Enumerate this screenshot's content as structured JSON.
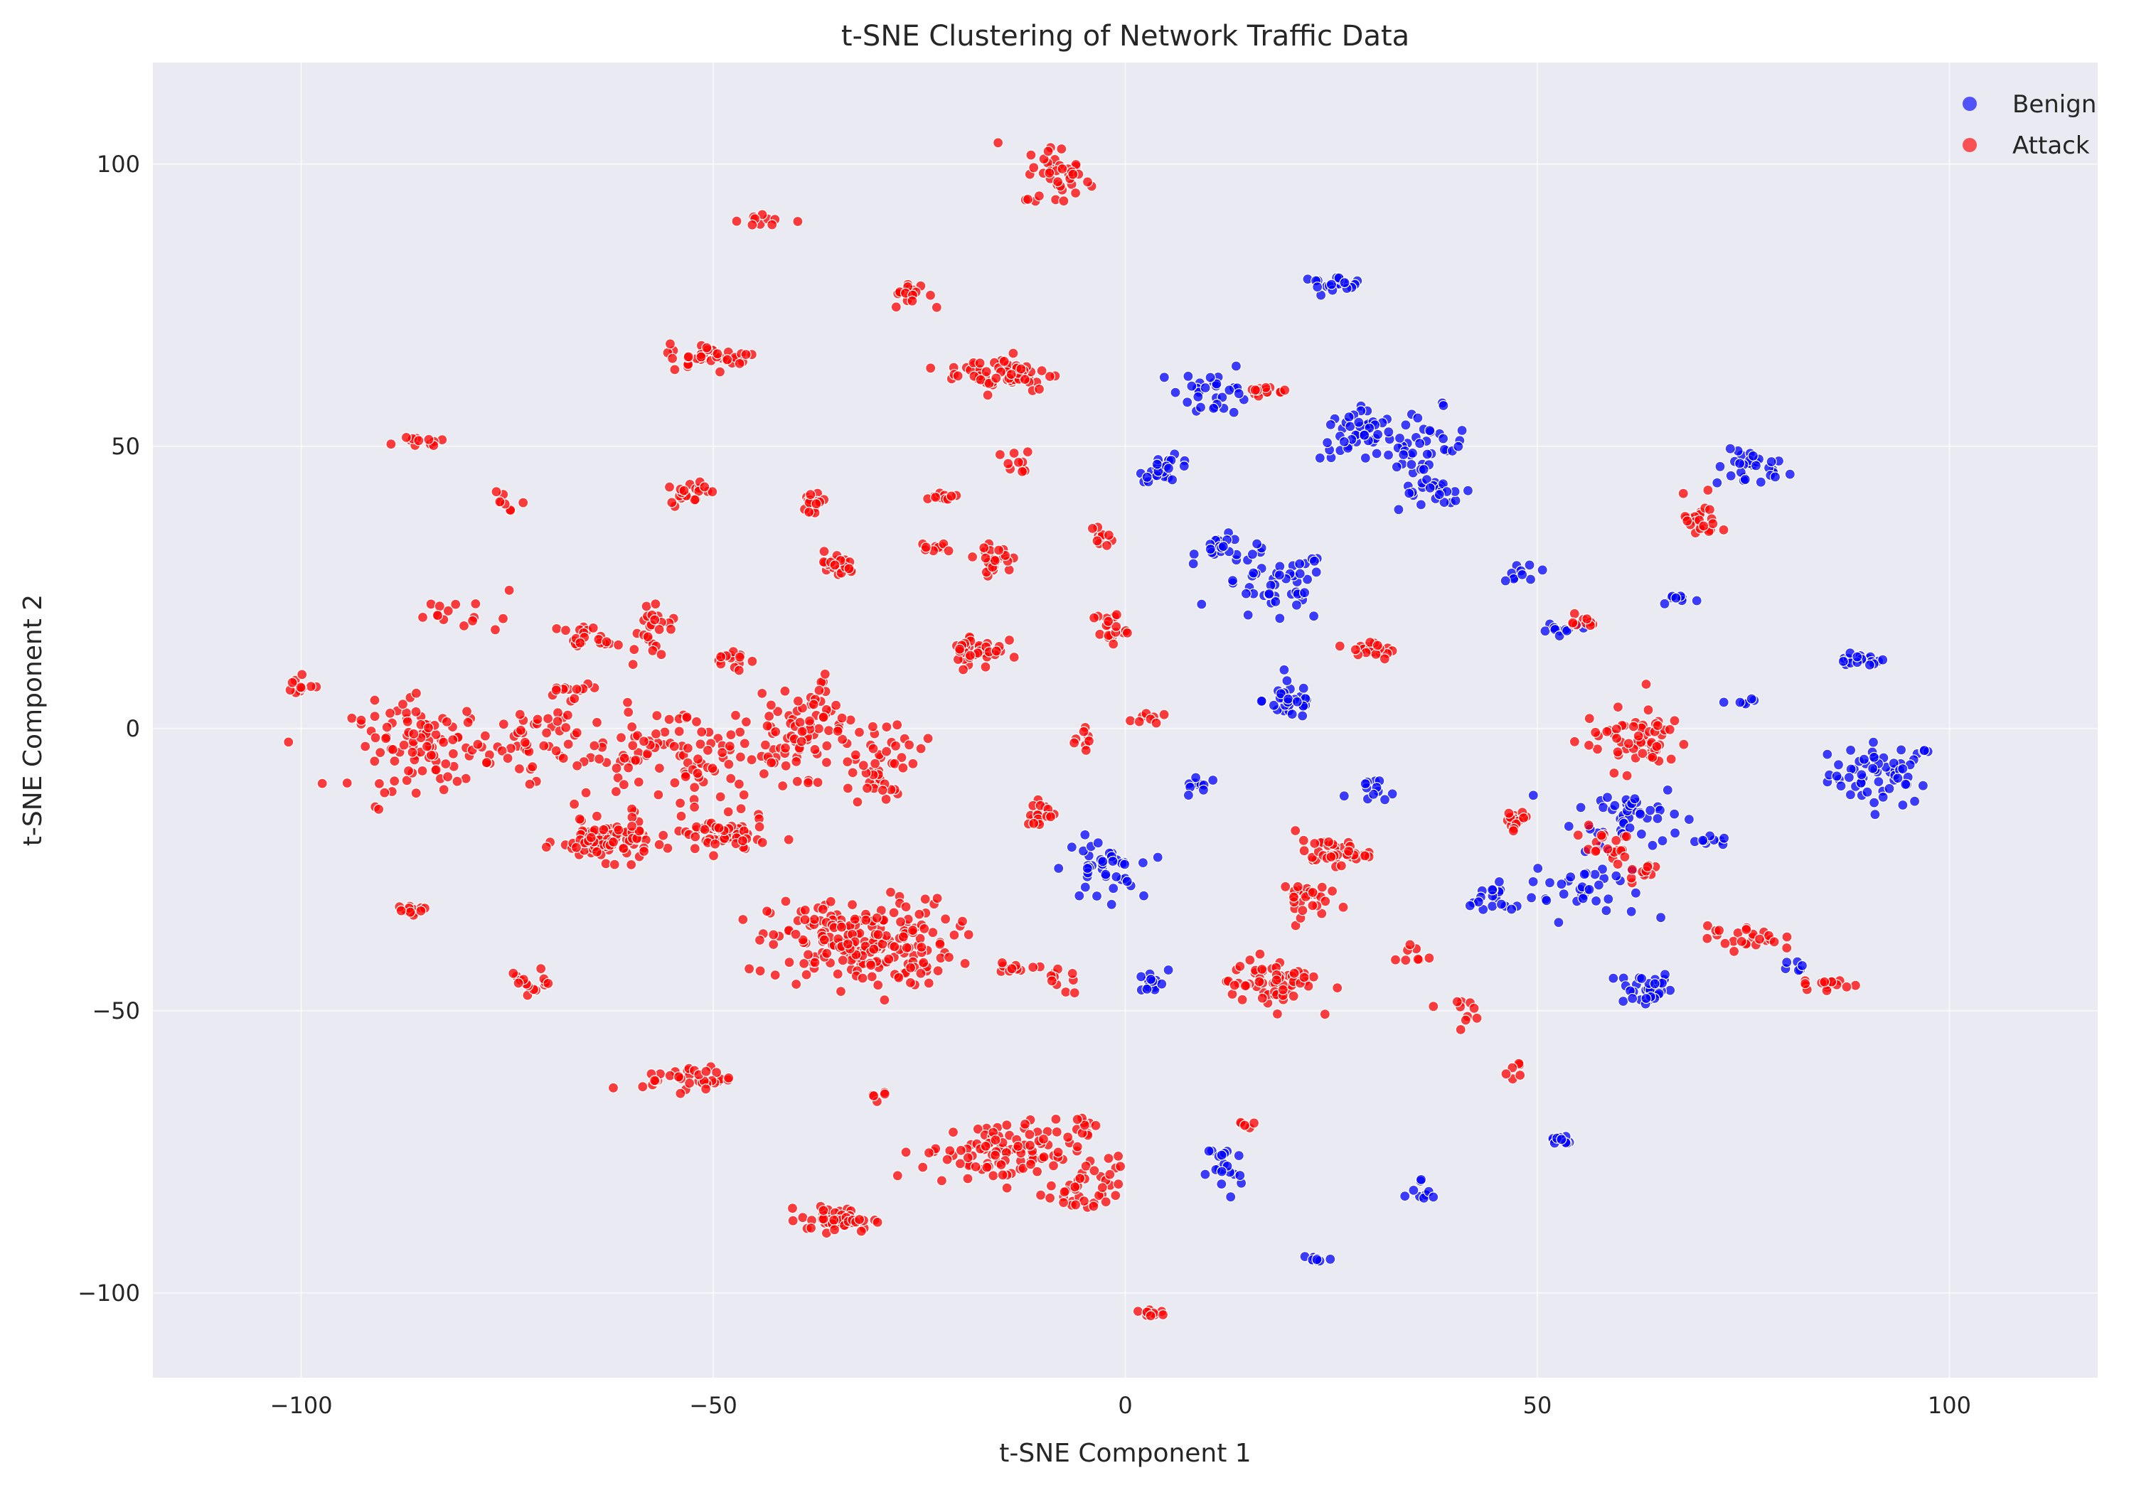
{
  "chart_data": {
    "type": "scatter",
    "title": "t-SNE Clustering of Network Traffic Data",
    "xlabel": "t-SNE Component 1",
    "ylabel": "t-SNE Component 2",
    "xlim": [
      -118,
      118
    ],
    "ylim": [
      -115,
      118
    ],
    "xticks": [
      -100,
      -50,
      0,
      50,
      100
    ],
    "yticks": [
      -100,
      -50,
      0,
      50,
      100
    ],
    "xtick_labels": [
      "−100",
      "−50",
      "0",
      "50",
      "100"
    ],
    "ytick_labels": [
      "−100",
      "−50",
      "0",
      "50",
      "100"
    ],
    "grid": true,
    "background": "#eaeaf2",
    "legend_position": "top-right",
    "series": [
      {
        "name": "Benign",
        "color": "#0000ff",
        "clusters": [
          [
            92,
            -8,
            6,
            5,
            60
          ],
          [
            89,
            12,
            3,
            1,
            18
          ],
          [
            76,
            46,
            4,
            3,
            30
          ],
          [
            63,
            -46,
            3,
            3,
            35
          ],
          [
            61,
            -15,
            6,
            5,
            45
          ],
          [
            56,
            -28,
            6,
            5,
            35
          ],
          [
            45,
            -30,
            4,
            3,
            20
          ],
          [
            36,
            50,
            5,
            6,
            45
          ],
          [
            38,
            42,
            4,
            2,
            20
          ],
          [
            28,
            52,
            4,
            4,
            40
          ],
          [
            20,
            5,
            3,
            3,
            35
          ],
          [
            18,
            25,
            6,
            6,
            50
          ],
          [
            12,
            32,
            3,
            2,
            20
          ],
          [
            11,
            60,
            4,
            4,
            30
          ],
          [
            5,
            46,
            3,
            2,
            25
          ],
          [
            25,
            79,
            4,
            1,
            20
          ],
          [
            -3,
            -25,
            4,
            5,
            40
          ],
          [
            3,
            -45,
            2,
            2,
            15
          ],
          [
            30,
            -12,
            3,
            3,
            12
          ],
          [
            12,
            -78,
            2,
            5,
            20
          ],
          [
            23,
            -94,
            2,
            1,
            10
          ],
          [
            53,
            -73,
            2,
            1,
            10
          ],
          [
            82,
            -42,
            2,
            1,
            6
          ],
          [
            67,
            23,
            2,
            1,
            8
          ],
          [
            53,
            18,
            3,
            1,
            12
          ],
          [
            9,
            -10,
            2,
            2,
            10
          ],
          [
            36,
            -83,
            2,
            3,
            10
          ],
          [
            70,
            -20,
            3,
            1,
            10
          ],
          [
            75,
            5,
            2,
            1,
            6
          ],
          [
            48,
            28,
            2,
            2,
            10
          ]
        ]
      },
      {
        "name": "Attack",
        "color": "#ff0000",
        "clusters": [
          [
            -32,
            -38,
            10,
            7,
            220
          ],
          [
            -55,
            -5,
            14,
            8,
            120
          ],
          [
            -85,
            -3,
            8,
            7,
            100
          ],
          [
            -72,
            -2,
            5,
            6,
            40
          ],
          [
            -63,
            -20,
            5,
            3,
            90
          ],
          [
            -49,
            -19,
            5,
            3,
            60
          ],
          [
            -40,
            -2,
            5,
            6,
            50
          ],
          [
            -30,
            -5,
            5,
            7,
            50
          ],
          [
            -15,
            -75,
            9,
            5,
            110
          ],
          [
            -5,
            -82,
            4,
            4,
            35
          ],
          [
            -35,
            -87,
            4,
            2,
            50
          ],
          [
            -53,
            -62,
            5,
            2,
            35
          ],
          [
            -15,
            63,
            6,
            3,
            60
          ],
          [
            -50,
            66,
            5,
            2,
            40
          ],
          [
            -26,
            77,
            2,
            2,
            20
          ],
          [
            -8,
            98,
            4,
            5,
            40
          ],
          [
            -18,
            14,
            3,
            3,
            40
          ],
          [
            -16,
            30,
            2,
            2,
            30
          ],
          [
            -35,
            29,
            2,
            2,
            25
          ],
          [
            -38,
            40,
            2,
            2,
            20
          ],
          [
            -53,
            42,
            2,
            2,
            20
          ],
          [
            -58,
            18,
            3,
            4,
            25
          ],
          [
            -65,
            16,
            3,
            2,
            20
          ],
          [
            -80,
            20,
            6,
            3,
            15
          ],
          [
            -86,
            51,
            3,
            1,
            12
          ],
          [
            -37,
            4,
            2,
            5,
            20
          ],
          [
            -2,
            18,
            2,
            3,
            20
          ],
          [
            -3,
            34,
            1,
            2,
            10
          ],
          [
            25,
            -22,
            4,
            2,
            40
          ],
          [
            18,
            -45,
            5,
            4,
            60
          ],
          [
            21,
            -30,
            3,
            3,
            30
          ],
          [
            35,
            -40,
            2,
            2,
            8
          ],
          [
            62,
            -2,
            6,
            5,
            60
          ],
          [
            58,
            -20,
            3,
            3,
            20
          ],
          [
            47,
            -17,
            2,
            2,
            15
          ],
          [
            70,
            37,
            2,
            4,
            25
          ],
          [
            75,
            -37,
            4,
            2,
            25
          ],
          [
            85,
            -45,
            3,
            2,
            15
          ],
          [
            3,
            -103,
            2,
            2,
            10
          ],
          [
            -8,
            -45,
            2,
            2,
            10
          ],
          [
            -5,
            -2,
            1,
            2,
            8
          ],
          [
            -86,
            -32,
            2,
            1,
            12
          ],
          [
            -72,
            -45,
            3,
            2,
            15
          ],
          [
            -67,
            7,
            3,
            1,
            12
          ],
          [
            -100,
            8,
            2,
            2,
            10
          ],
          [
            -75,
            40,
            2,
            2,
            8
          ],
          [
            -44,
            90,
            3,
            1,
            10
          ],
          [
            -10,
            -15,
            2,
            2,
            20
          ],
          [
            -13,
            47,
            2,
            2,
            10
          ],
          [
            -22,
            41,
            2,
            1,
            10
          ],
          [
            -23,
            32,
            2,
            1,
            10
          ],
          [
            17,
            60,
            2,
            1,
            15
          ],
          [
            40,
            -50,
            2,
            2,
            10
          ],
          [
            55,
            19,
            2,
            1,
            10
          ],
          [
            63,
            -25,
            2,
            2,
            12
          ],
          [
            2,
            2,
            2,
            1,
            8
          ],
          [
            -48,
            12,
            2,
            2,
            15
          ],
          [
            -30,
            -65,
            1,
            1,
            5
          ],
          [
            47,
            -60,
            1,
            2,
            6
          ],
          [
            30,
            14,
            3,
            2,
            20
          ],
          [
            14,
            -70,
            2,
            1,
            6
          ],
          [
            -5,
            -70,
            1,
            1,
            6
          ],
          [
            -13,
            -42,
            2,
            2,
            10
          ]
        ]
      }
    ]
  }
}
